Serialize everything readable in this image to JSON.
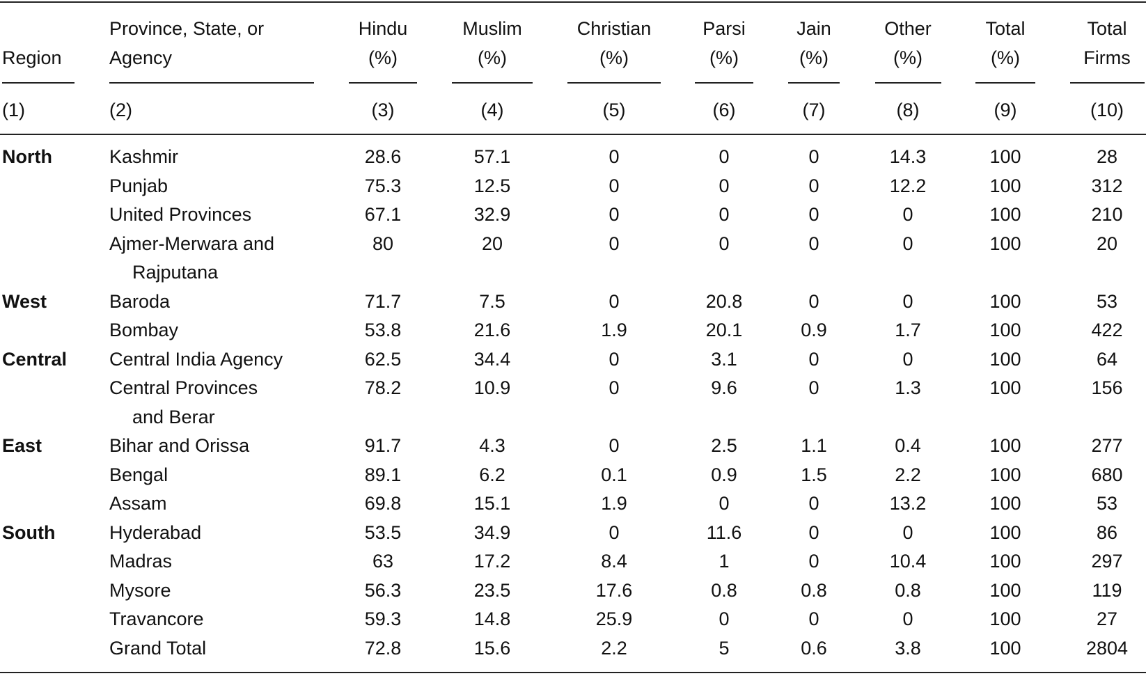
{
  "table": {
    "headers": [
      [
        "Region"
      ],
      [
        "Province, State, or",
        "Agency"
      ],
      [
        "Hindu",
        "(%)"
      ],
      [
        "Muslim",
        "(%)"
      ],
      [
        "Christian",
        "(%)"
      ],
      [
        "Parsi",
        "(%)"
      ],
      [
        "Jain",
        "(%)"
      ],
      [
        "Other",
        "(%)"
      ],
      [
        "Total",
        "(%)"
      ],
      [
        "Total",
        "Firms"
      ]
    ],
    "column_numbers": [
      "(1)",
      "(2)",
      "(3)",
      "(4)",
      "(5)",
      "(6)",
      "(7)",
      "(8)",
      "(9)",
      "(10)"
    ],
    "groups": [
      {
        "region": "North",
        "rows": [
          [
            "Kashmir",
            28.6,
            57.1,
            0,
            0,
            0,
            14.3,
            100,
            28
          ],
          [
            "Punjab",
            75.3,
            12.5,
            0,
            0,
            0,
            12.2,
            100,
            312
          ],
          [
            "United Provinces",
            67.1,
            32.9,
            0,
            0,
            0,
            0,
            100,
            210
          ],
          [
            "Ajmer-Merwara and Rajputana",
            80,
            20,
            0,
            0,
            0,
            0,
            100,
            20
          ]
        ]
      },
      {
        "region": "West",
        "rows": [
          [
            "Baroda",
            71.7,
            7.5,
            0,
            20.8,
            0,
            0,
            100,
            53
          ],
          [
            "Bombay",
            53.8,
            21.6,
            1.9,
            20.1,
            0.9,
            1.7,
            100,
            422
          ]
        ]
      },
      {
        "region": "Central",
        "rows": [
          [
            "Central India Agency",
            62.5,
            34.4,
            0,
            3.1,
            0,
            0,
            100,
            64
          ],
          [
            "Central Provinces and Berar",
            78.2,
            10.9,
            0,
            9.6,
            0,
            1.3,
            100,
            156
          ]
        ]
      },
      {
        "region": "East",
        "rows": [
          [
            "Bihar and Orissa",
            91.7,
            4.3,
            0,
            2.5,
            1.1,
            0.4,
            100,
            277
          ],
          [
            "Bengal",
            89.1,
            6.2,
            0.1,
            0.9,
            1.5,
            2.2,
            100,
            680
          ],
          [
            "Assam",
            69.8,
            15.1,
            1.9,
            0,
            0,
            13.2,
            100,
            53
          ]
        ]
      },
      {
        "region": "South",
        "rows": [
          [
            "Hyderabad",
            53.5,
            34.9,
            0,
            11.6,
            0,
            0,
            100,
            86
          ],
          [
            "Madras",
            63,
            17.2,
            8.4,
            1,
            0,
            10.4,
            100,
            297
          ],
          [
            "Mysore",
            56.3,
            23.5,
            17.6,
            0.8,
            0.8,
            0.8,
            100,
            119
          ],
          [
            "Travancore",
            59.3,
            14.8,
            25.9,
            0,
            0,
            0,
            100,
            27
          ]
        ]
      }
    ],
    "total_row": [
      "Grand Total",
      72.8,
      15.6,
      2.2,
      5,
      0.6,
      3.8,
      100,
      2804
    ]
  }
}
